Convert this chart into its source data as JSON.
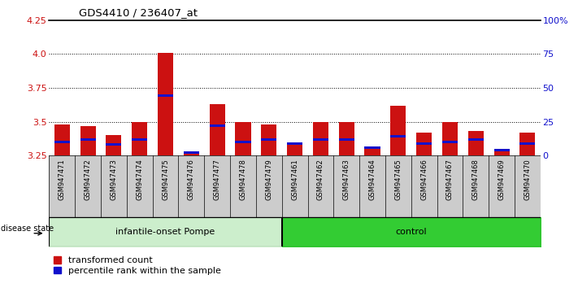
{
  "title": "GDS4410 / 236407_at",
  "samples": [
    "GSM947471",
    "GSM947472",
    "GSM947473",
    "GSM947474",
    "GSM947475",
    "GSM947476",
    "GSM947477",
    "GSM947478",
    "GSM947479",
    "GSM947461",
    "GSM947462",
    "GSM947463",
    "GSM947464",
    "GSM947465",
    "GSM947466",
    "GSM947467",
    "GSM947468",
    "GSM947469",
    "GSM947470"
  ],
  "red_values": [
    3.48,
    3.47,
    3.4,
    3.5,
    4.01,
    3.27,
    3.63,
    3.5,
    3.48,
    3.35,
    3.5,
    3.5,
    3.31,
    3.62,
    3.42,
    3.5,
    3.43,
    3.28,
    3.42
  ],
  "blue_pct": [
    10,
    12,
    8,
    12,
    44,
    2,
    22,
    10,
    12,
    9,
    12,
    12,
    6,
    14,
    9,
    10,
    12,
    4,
    9
  ],
  "group1_label": "infantile-onset Pompe",
  "group2_label": "control",
  "group1_count": 9,
  "group2_count": 10,
  "y_min": 3.25,
  "y_max": 4.25,
  "y_ticks": [
    3.25,
    3.5,
    3.75,
    4.0,
    4.25
  ],
  "y_right_ticks": [
    0,
    25,
    50,
    75,
    100
  ],
  "y_right_labels": [
    "0",
    "25",
    "50",
    "75",
    "100%"
  ],
  "bar_color_red": "#cc1111",
  "bar_color_blue": "#1111cc",
  "group1_bg": "#cceecc",
  "group2_bg": "#33cc33",
  "tick_bg": "#cccccc",
  "white": "#ffffff",
  "black": "#000000"
}
